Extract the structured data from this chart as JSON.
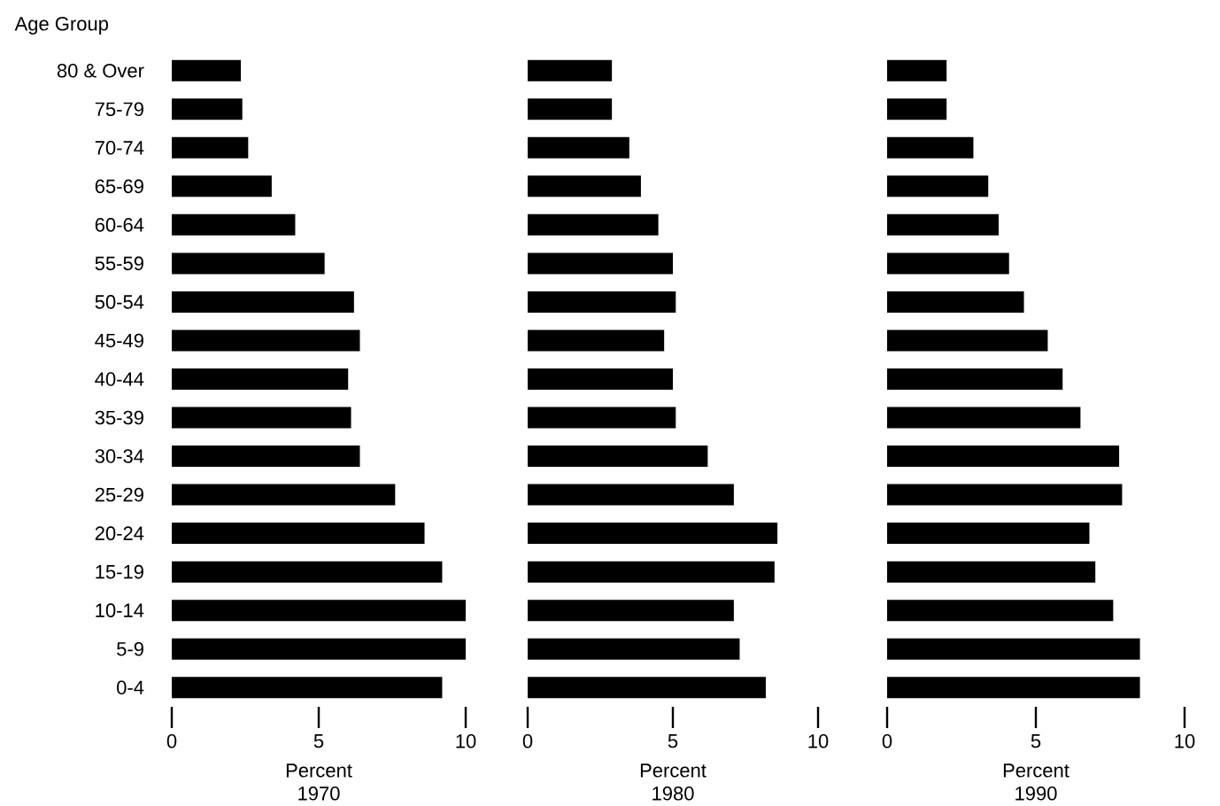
{
  "chart_data": [
    {
      "type": "bar",
      "orientation": "horizontal",
      "ylabel": "Age Group",
      "xlabel": "Percent 1970",
      "color": "#000000",
      "categories": [
        "80 & Over",
        "75-79",
        "70-74",
        "65-69",
        "60-64",
        "55-59",
        "50-54",
        "45-49",
        "40-44",
        "35-39",
        "30-34",
        "25-29",
        "20-24",
        "15-19",
        "10-14",
        "5-9",
        "0-4"
      ],
      "values": [
        2.35,
        2.4,
        2.6,
        3.4,
        4.2,
        5.2,
        6.2,
        6.4,
        6.0,
        6.1,
        6.4,
        7.6,
        8.6,
        9.2,
        10.0,
        10.0,
        9.2
      ],
      "xlim": [
        0,
        10
      ],
      "xticks": [
        0,
        5,
        10
      ]
    },
    {
      "type": "bar",
      "orientation": "horizontal",
      "xlabel": "Percent 1980",
      "color": "#000000",
      "tick_labels": "x",
      "categories": [
        null,
        null,
        null,
        null,
        null,
        null,
        null,
        null,
        null,
        null,
        null,
        null,
        null,
        null,
        null,
        null,
        null
      ],
      "values": [
        2.9,
        2.9,
        3.5,
        3.9,
        4.5,
        5.0,
        5.1,
        4.7,
        5.0,
        5.1,
        6.2,
        7.1,
        8.6,
        8.5,
        7.1,
        7.3,
        8.2
      ],
      "xlim": [
        0,
        10
      ],
      "xticks": [
        0,
        5,
        10
      ]
    },
    {
      "type": "bar",
      "orientation": "horizontal",
      "xlabel": "Percent 1990",
      "color": "#000000",
      "tick_labels": "x",
      "categories": [
        null,
        null,
        null,
        null,
        null,
        null,
        null,
        null,
        null,
        null,
        null,
        null,
        null,
        null,
        null,
        null,
        null
      ],
      "values": [
        2.0,
        2.0,
        2.9,
        3.4,
        3.75,
        4.1,
        4.6,
        5.4,
        5.9,
        6.5,
        7.8,
        7.9,
        6.8,
        7.0,
        7.6,
        8.5,
        8.5
      ],
      "xlim": [
        0,
        10
      ],
      "xticks": [
        0,
        5,
        10
      ]
    }
  ]
}
